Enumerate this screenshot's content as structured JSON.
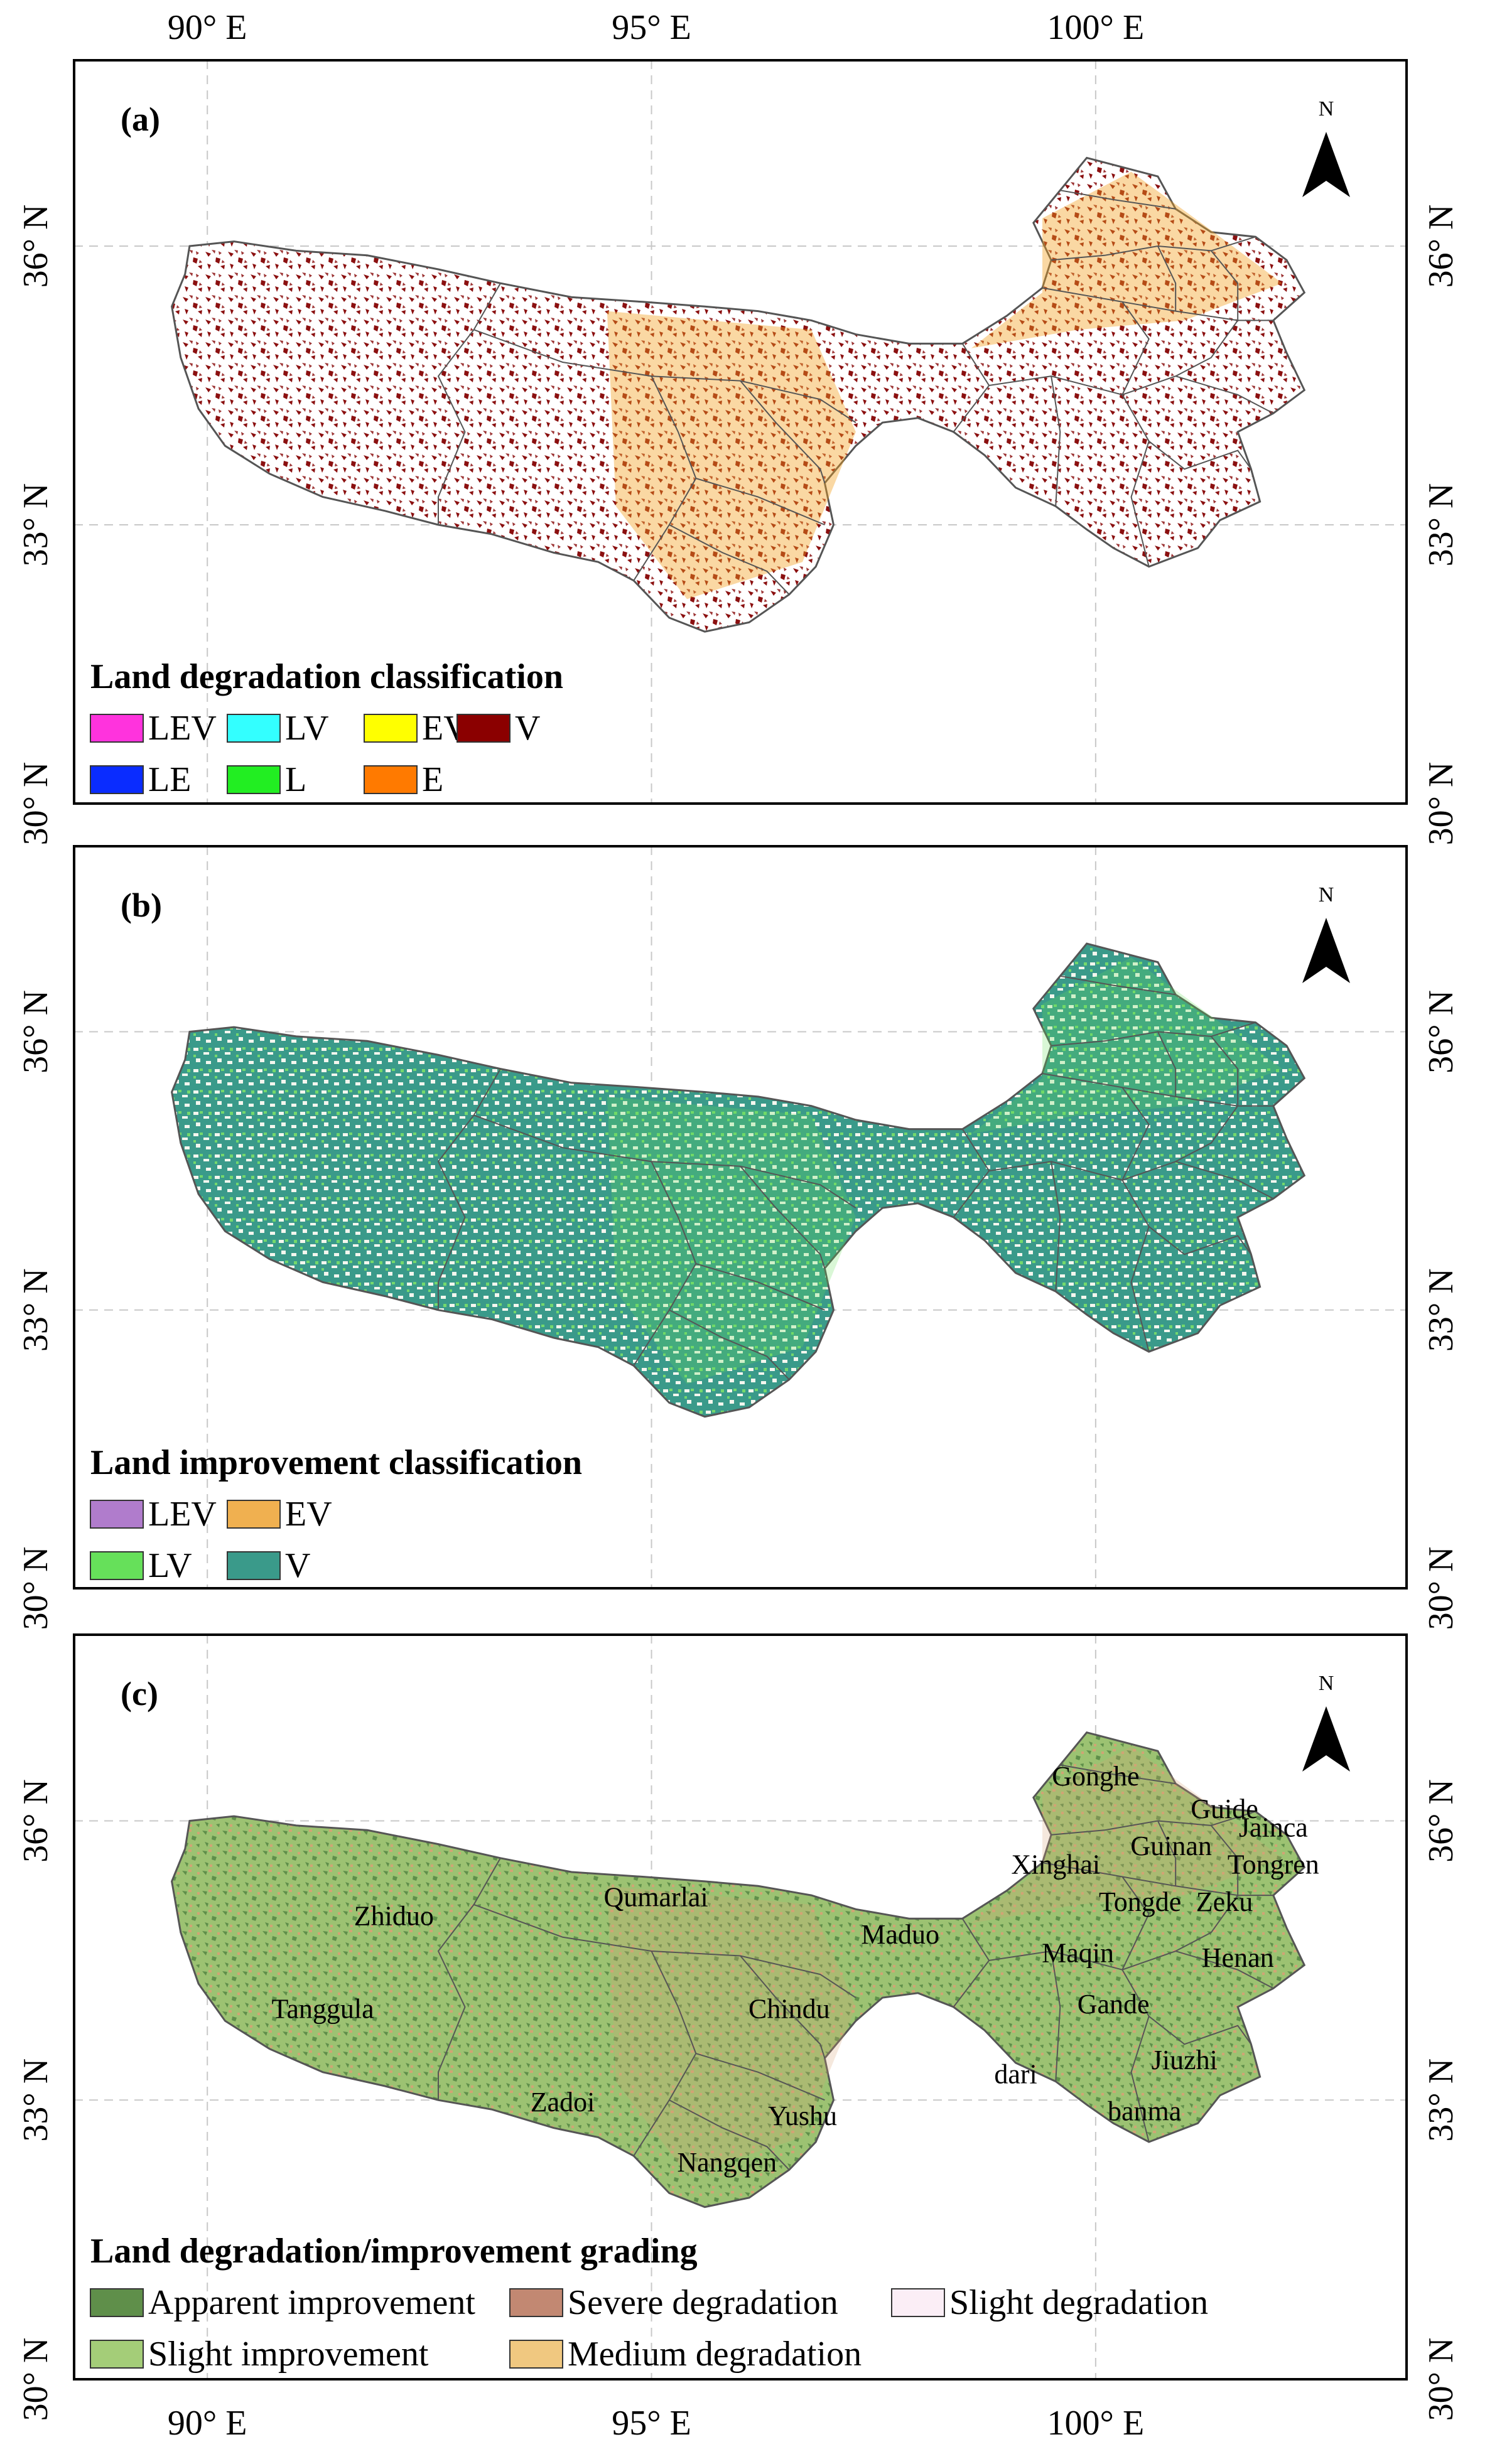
{
  "axes": {
    "lon_labels": [
      "90° E",
      "95° E",
      "100° E"
    ],
    "lat_labels": [
      "36° N",
      "33° N",
      "30° N"
    ]
  },
  "north_label": "N",
  "panels": [
    {
      "tag": "(a)",
      "legend_title": "Land degradation classification",
      "legend": [
        {
          "label": "LEV",
          "color": "#ff33dd"
        },
        {
          "label": "LV",
          "color": "#33ffff"
        },
        {
          "label": "EV",
          "color": "#ffff00"
        },
        {
          "label": "V",
          "color": "#8b0000"
        },
        {
          "label": "LE",
          "color": "#0a2cff"
        },
        {
          "label": "L",
          "color": "#22ee22"
        },
        {
          "label": "E",
          "color": "#ff7a00"
        }
      ],
      "colors": {
        "base": "#ffffff",
        "main": "#8b1010",
        "secondary": "#f2a020"
      }
    },
    {
      "tag": "(b)",
      "legend_title": "Land improvement classification",
      "legend": [
        {
          "label": "LEV",
          "color": "#b07ccc"
        },
        {
          "label": "EV",
          "color": "#f0b050"
        },
        {
          "label": "LV",
          "color": "#66e05a"
        },
        {
          "label": "V",
          "color": "#3a9a8a"
        }
      ],
      "colors": {
        "base": "#e8ecdc",
        "main": "#3a9a8a",
        "secondary": "#66e05a"
      }
    },
    {
      "tag": "(c)",
      "legend_title": "Land degradation/improvement grading",
      "legend": [
        {
          "label": "Apparent improvement",
          "color": "#5f8f4a"
        },
        {
          "label": "Severe degradation",
          "color": "#c28872"
        },
        {
          "label": "Slight degradation",
          "color": "#fbeef6"
        },
        {
          "label": "Slight improvement",
          "color": "#a4cd78"
        },
        {
          "label": "Medium degradation",
          "color": "#f0c880"
        }
      ],
      "colors": {
        "base": "#9cc272",
        "main": "#6e9a50",
        "secondary": "#d6a276"
      },
      "places": [
        {
          "name": "Gonghe",
          "lon": 100.0,
          "lat": 36.45
        },
        {
          "name": "Guide",
          "lon": 101.45,
          "lat": 36.1
        },
        {
          "name": "Jainca",
          "lon": 102.0,
          "lat": 35.9
        },
        {
          "name": "Guinan",
          "lon": 100.85,
          "lat": 35.7
        },
        {
          "name": "Xinghai",
          "lon": 99.55,
          "lat": 35.5
        },
        {
          "name": "Tongren",
          "lon": 102.0,
          "lat": 35.5
        },
        {
          "name": "Tongde",
          "lon": 100.5,
          "lat": 35.1
        },
        {
          "name": "Zeku",
          "lon": 101.45,
          "lat": 35.1
        },
        {
          "name": "Zhiduo",
          "lon": 92.1,
          "lat": 34.95
        },
        {
          "name": "Qumarlai",
          "lon": 95.05,
          "lat": 35.15
        },
        {
          "name": "Maduo",
          "lon": 97.8,
          "lat": 34.75
        },
        {
          "name": "Maqin",
          "lon": 99.8,
          "lat": 34.55
        },
        {
          "name": "Henan",
          "lon": 101.6,
          "lat": 34.5
        },
        {
          "name": "Tanggula",
          "lon": 91.3,
          "lat": 33.95
        },
        {
          "name": "Chindu",
          "lon": 96.55,
          "lat": 33.95
        },
        {
          "name": "Gande",
          "lon": 100.2,
          "lat": 34.0
        },
        {
          "name": "Jiuzhi",
          "lon": 101.0,
          "lat": 33.4
        },
        {
          "name": "dari",
          "lon": 99.1,
          "lat": 33.25
        },
        {
          "name": "Zadoi",
          "lon": 94.0,
          "lat": 32.95
        },
        {
          "name": "Yushu",
          "lon": 96.7,
          "lat": 32.8
        },
        {
          "name": "banma",
          "lon": 100.55,
          "lat": 32.85
        },
        {
          "name": "Nangqen",
          "lon": 95.85,
          "lat": 32.3
        }
      ]
    }
  ]
}
